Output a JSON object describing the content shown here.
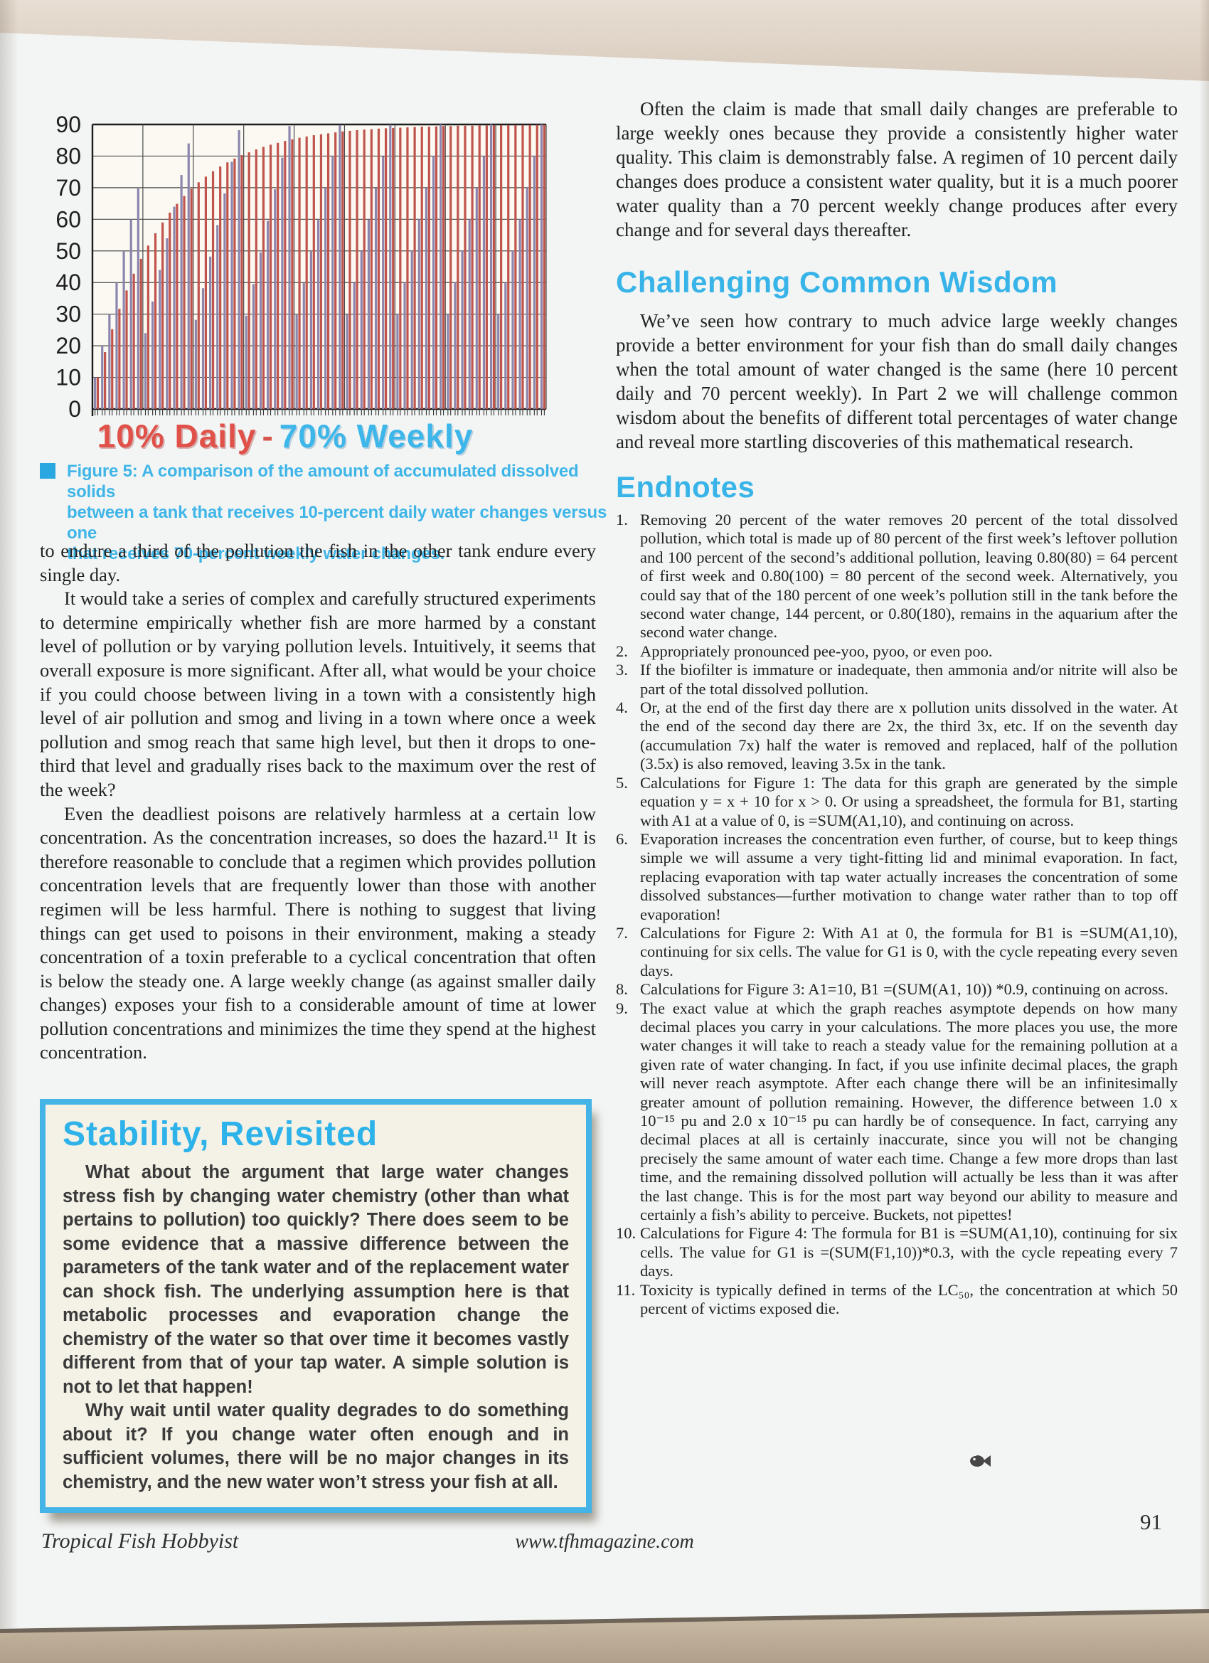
{
  "theme": {
    "page_background": "#f3f5f4",
    "heading_cyan": "#38b4e8",
    "caption_cyan": "#3fb5e8",
    "box_border_cyan": "#44b3e5",
    "box_title_cyan": "#2db2e9",
    "title_red": "#e0514a",
    "title_blue": "#3db6ea",
    "bar_red_daily": "#c0544c",
    "bar_blue_weekly": "#8c86ae"
  },
  "icons": {
    "caption_bullet": "square-bullet",
    "article_end": "fish"
  },
  "chart_data": {
    "type": "bar",
    "title": "10% Daily - 70% Weekly",
    "title_parts": {
      "daily": "10% Daily",
      "separator": "-",
      "weekly": "70% Weekly"
    },
    "x_range": [
      1,
      63
    ],
    "x_unit": "day",
    "ylim": [
      0,
      90
    ],
    "yticks": [
      0,
      10,
      20,
      30,
      40,
      50,
      60,
      70,
      80,
      90
    ],
    "grid": {
      "horizontal_every": 10,
      "vertical_every_days": 7
    },
    "legend_position": "title-colors",
    "series": [
      {
        "name": "70% Weekly",
        "color": "#8c86ae",
        "values": [
          10,
          20,
          30,
          40,
          50,
          60,
          70,
          24,
          34,
          44,
          54,
          64,
          74,
          84,
          28.2,
          38.2,
          48.2,
          58.2,
          68.2,
          78.2,
          88.2,
          29.5,
          39.5,
          49.5,
          59.5,
          69.5,
          79.5,
          89.5,
          29.8,
          39.8,
          49.8,
          59.8,
          69.8,
          79.8,
          89.8,
          29.9,
          39.9,
          49.9,
          59.9,
          69.9,
          79.9,
          89.9,
          30,
          40,
          50,
          60,
          70,
          80,
          90,
          30,
          40,
          50,
          60,
          70,
          80,
          90,
          30,
          40,
          50,
          60,
          70,
          80,
          90
        ]
      },
      {
        "name": "10% Daily",
        "color": "#c0544c",
        "values": [
          10,
          18,
          25.2,
          31.7,
          37.5,
          42.8,
          47.5,
          51.7,
          55.6,
          59,
          62.1,
          64.9,
          67.4,
          69.7,
          71.7,
          73.5,
          75.2,
          76.7,
          78,
          79.2,
          80.3,
          81.2,
          82.1,
          82.9,
          83.6,
          84.2,
          84.8,
          85.3,
          85.8,
          86.2,
          86.6,
          86.9,
          87.2,
          87.5,
          87.8,
          88,
          88.2,
          88.4,
          88.5,
          88.7,
          88.8,
          88.9,
          89,
          89.1,
          89.2,
          89.3,
          89.3,
          89.4,
          89.5,
          89.5,
          89.6,
          89.6,
          89.6,
          89.7,
          89.7,
          89.7,
          89.8,
          89.8,
          89.8,
          89.8,
          89.8,
          89.9,
          89.9
        ]
      }
    ]
  },
  "figure": {
    "caption_lines": [
      "Figure 5: A comparison of the amount of accumulated dissolved solids",
      "between a tank that receives 10-percent daily water changes versus one",
      "that receives 70-percent weekly water changes."
    ]
  },
  "left_column": {
    "paragraphs": [
      "to endure a third of the pollution the fish in the other tank endure every single day.",
      "It would take a series of complex and carefully structured experiments to determine empirically whether fish are more harmed by a constant level of pollution or by varying pollution levels. Intuitively, it seems that overall exposure is more significant. After all, what would be your choice if you could choose between living in a town with a consistently high level of air pollution and smog and living in a town where once a week pollution and smog reach that same high level, but then it drops to one-third that level and gradually rises back to the maximum over the rest of the week?",
      "Even the deadliest poisons are relatively harmless at a certain low concentration. As the concentration increases, so does the hazard.¹¹ It is therefore reasonable to conclude that a regimen which provides pollution concentration levels that are frequently lower than those with another regimen will be less harmful. There is nothing to suggest that living things can get used to poisons in their environment, making a steady concentration of a toxin preferable to a cyclical concentration that often is below the steady one. A large weekly change (as against smaller daily changes) exposes your fish to a considerable amount of time at lower pollution concentrations and minimizes the time they spend at the highest concentration."
    ]
  },
  "stability_box": {
    "title": "Stability, Revisited",
    "paragraphs": [
      "What about the argument that large water changes stress fish by changing water chemistry (other than what pertains to pollution) too quickly? There does seem to be some evidence that a massive difference between the parameters of the tank water and of the replacement water can shock fish. The underlying assumption here is that metabolic processes and evaporation change the chemistry of the water so that over time it becomes vastly different from that of your tap water. A simple solution is not to let that happen!",
      "Why wait until water quality degrades to do something about it? If you change water often enough and in sufficient volumes, there will be no major changes in its chemistry, and the new water won’t stress your fish at all."
    ]
  },
  "right_column": {
    "paragraph1": "Often the claim is made that small daily changes are preferable to large weekly ones because they provide a consistently higher water quality. This claim is demonstrably false. A regimen of 10 percent daily changes does produce a consistent water quality, but it is a much poorer water quality than a 70 percent weekly change produces after every change and for several days thereafter.",
    "heading1": "Challenging Common Wisdom",
    "paragraph2": "We’ve seen how contrary to much advice large weekly changes provide a better environment for your fish than do small daily changes when the total amount of water changed is the same (here 10 percent daily and 70 percent weekly). In Part 2 we will challenge common wisdom about the benefits of different total percentages of water change and reveal more startling discoveries of this mathematical research.",
    "endnotes_heading": "Endnotes",
    "endnotes": [
      "Removing 20 percent of the water removes 20 percent of the total dissolved pollution, which total is made up of 80 percent of the first week’s leftover pollution and 100 percent of the second’s additional pollution, leaving 0.80(80) = 64 percent of first week and 0.80(100) = 80 percent of the second week. Alternatively, you could say that of the 180 percent of one week’s pollution still in the tank before the second water change, 144 percent, or 0.80(180), remains in the aquarium after the second water change.",
      "Appropriately pronounced pee-yoo, pyoo, or even poo.",
      "If the biofilter is immature or inadequate, then ammonia and/or nitrite will also be part of the total dissolved pollution.",
      "Or, at the end of the first day there are x pollution units dissolved in the water. At the end of the second day there are 2x, the third 3x, etc. If on the seventh day (accumulation 7x) half the water is removed and replaced, half of the pollution (3.5x) is also removed, leaving 3.5x in the tank.",
      "Calculations for Figure 1: The data for this graph are generated by the simple equation y = x + 10 for x > 0. Or using a spreadsheet, the formula for B1, starting with A1 at a value of 0, is =SUM(A1,10), and continuing on across.",
      "Evaporation increases the concentration even further, of course, but to keep things simple we will assume a very tight-fitting lid and minimal evaporation. In fact, replacing evaporation with tap water actually increases the concentration of some dissolved substances—further motivation to change water rather than to top off evaporation!",
      "Calculations for Figure 2: With A1 at 0, the formula for B1 is =SUM(A1,10), continuing for six cells. The value for G1 is 0, with the cycle repeating every seven days.",
      "Calculations for Figure 3: A1=10, B1 =(SUM(A1, 10)) *0.9, continuing on across.",
      "The exact value at which the graph reaches asymptote depends on how many decimal places you carry in your calculations. The more places you use, the more water changes it will take to reach a steady value for the remaining pollution at a given rate of water changing. In fact, if you use infinite decimal places, the graph will never reach asymptote. After each change there will be an infinitesimally greater amount of pollution remaining. However, the difference between 1.0 x 10⁻¹⁵ pu and 2.0 x 10⁻¹⁵ pu can hardly be of consequence. In fact, carrying any decimal places at all is certainly inaccurate, since you will not be changing precisely the same amount of water each time. Change a few more drops than last time, and the remaining dissolved pollution will actually be less than it was after the last change. This is for the most part way beyond our ability to measure and certainly a fish’s ability to perceive. Buckets, not pipettes!",
      "Calculations for Figure 4: The formula for B1 is =SUM(A1,10), continuing for six cells. The value for G1 is =(SUM(F1,10))*0.3, with the cycle repeating every 7 days.",
      "Toxicity is typically defined in terms of the LC₅₀, the concentration at which 50 percent of victims exposed die."
    ]
  },
  "footer": {
    "magazine": "Tropical Fish Hobbyist",
    "website": "www.tfhmagazine.com",
    "page_number": "91"
  }
}
